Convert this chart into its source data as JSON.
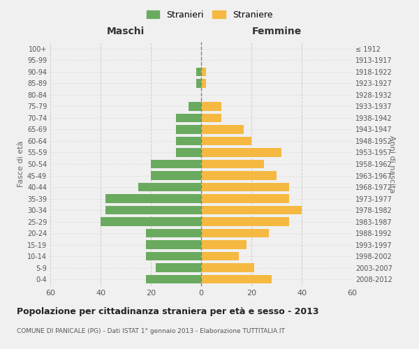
{
  "age_groups": [
    "0-4",
    "5-9",
    "10-14",
    "15-19",
    "20-24",
    "25-29",
    "30-34",
    "35-39",
    "40-44",
    "45-49",
    "50-54",
    "55-59",
    "60-64",
    "65-69",
    "70-74",
    "75-79",
    "80-84",
    "85-89",
    "90-94",
    "95-99",
    "100+"
  ],
  "birth_years": [
    "2008-2012",
    "2003-2007",
    "1998-2002",
    "1993-1997",
    "1988-1992",
    "1983-1987",
    "1978-1982",
    "1973-1977",
    "1968-1972",
    "1963-1967",
    "1958-1962",
    "1953-1957",
    "1948-1952",
    "1943-1947",
    "1938-1942",
    "1933-1937",
    "1928-1932",
    "1923-1927",
    "1918-1922",
    "1913-1917",
    "≤ 1912"
  ],
  "maschi": [
    22,
    18,
    22,
    22,
    22,
    40,
    38,
    38,
    25,
    20,
    20,
    10,
    10,
    10,
    10,
    5,
    0,
    2,
    2,
    0,
    0
  ],
  "femmine": [
    28,
    21,
    15,
    18,
    27,
    35,
    40,
    35,
    35,
    30,
    25,
    32,
    20,
    17,
    8,
    8,
    0,
    2,
    2,
    0,
    0
  ],
  "maschi_color": "#6aaa5f",
  "femmine_color": "#f5b942",
  "background_color": "#f0f0f0",
  "grid_color": "#cccccc",
  "title": "Popolazione per cittadinanza straniera per età e sesso - 2013",
  "subtitle": "COMUNE DI PANICALE (PG) - Dati ISTAT 1° gennaio 2013 - Elaborazione TUTTITALIA.IT",
  "xlabel_left": "Maschi",
  "xlabel_right": "Femmine",
  "ylabel_left": "Fasce di età",
  "ylabel_right": "Anni di nascita",
  "legend_maschi": "Stranieri",
  "legend_femmine": "Straniere",
  "xlim": 60,
  "bar_height": 0.75
}
